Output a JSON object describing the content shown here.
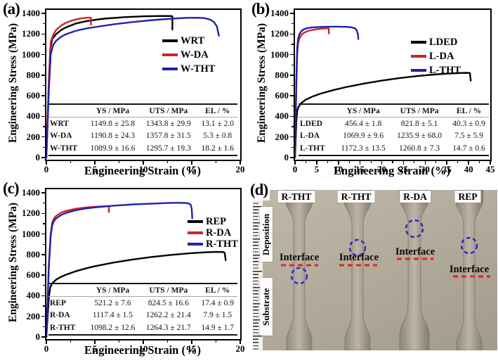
{
  "chart_data": [
    {
      "id": "a",
      "type": "line",
      "panel_label": "(a)",
      "xlabel": "Engineering Strain (%)",
      "ylabel": "Engineering Stress (MPa)",
      "xlim": [
        0,
        20
      ],
      "ylim": [
        0,
        1400
      ],
      "xticks": [
        0,
        5,
        10,
        15,
        20
      ],
      "yticks": [
        0,
        200,
        400,
        600,
        800,
        1000,
        1200,
        1400
      ],
      "legend_position": "right-middle",
      "grid": false,
      "series": [
        {
          "name": "WRT",
          "color": "#000000",
          "points": [
            [
              0,
              0
            ],
            [
              0.25,
              700
            ],
            [
              0.4,
              1050
            ],
            [
              0.6,
              1150
            ],
            [
              1,
              1198
            ],
            [
              1.5,
              1237
            ],
            [
              2,
              1263
            ],
            [
              3,
              1300
            ],
            [
              4,
              1322
            ],
            [
              5,
              1337
            ],
            [
              6,
              1349
            ],
            [
              8,
              1363
            ],
            [
              10,
              1371
            ],
            [
              12,
              1375
            ],
            [
              12.9,
              1374
            ],
            [
              13,
              1371
            ],
            [
              13,
              1243
            ]
          ]
        },
        {
          "name": "W-DA",
          "color": "#cc2424",
          "points": [
            [
              0,
              0
            ],
            [
              0.25,
              760
            ],
            [
              0.45,
              1125
            ],
            [
              0.7,
              1192
            ],
            [
              1,
              1238
            ],
            [
              1.5,
              1280
            ],
            [
              2,
              1307
            ],
            [
              2.5,
              1326
            ],
            [
              3,
              1340
            ],
            [
              3.5,
              1350
            ],
            [
              4,
              1356
            ],
            [
              4.5,
              1359
            ],
            [
              4.6,
              1357
            ],
            [
              4.6,
              1290
            ]
          ]
        },
        {
          "name": "W-THT",
          "color": "#2121b0",
          "points": [
            [
              0,
              0
            ],
            [
              0.25,
              650
            ],
            [
              0.45,
              1005
            ],
            [
              0.7,
              1092
            ],
            [
              1,
              1132
            ],
            [
              1.5,
              1172
            ],
            [
              2,
              1197
            ],
            [
              3,
              1229
            ],
            [
              4,
              1251
            ],
            [
              5,
              1267
            ],
            [
              7,
              1295
            ],
            [
              9,
              1317
            ],
            [
              11,
              1335
            ],
            [
              13,
              1349
            ],
            [
              14.5,
              1357
            ],
            [
              15.5,
              1358
            ],
            [
              16.3,
              1354
            ],
            [
              16.9,
              1340
            ],
            [
              17.3,
              1315
            ],
            [
              17.6,
              1270
            ],
            [
              17.8,
              1183
            ]
          ]
        }
      ],
      "table": {
        "headers": [
          "",
          "YS / MPa",
          "UTS / MPa",
          "EL / %"
        ],
        "rows": [
          [
            "WRT",
            "1149.8 ± 25.8",
            "1343.8 ± 29.9",
            "13.1 ± 2.0"
          ],
          [
            "W-DA",
            "1190.8 ± 24.3",
            "1357.8 ± 31.5",
            "5.3 ± 0.8"
          ],
          [
            "W-THT",
            "1089.9 ± 16.6",
            "1295.7 ± 19.3",
            "18.2 ± 1.6"
          ]
        ]
      }
    },
    {
      "id": "b",
      "type": "line",
      "panel_label": "(b)",
      "xlabel": "Engineering Strain (%)",
      "ylabel": "Engineering Stress (MPa)",
      "xlim": [
        0,
        45
      ],
      "ylim": [
        0,
        1400
      ],
      "xticks": [
        0,
        5,
        10,
        15,
        20,
        25,
        30,
        35,
        40,
        45
      ],
      "yticks": [
        0,
        200,
        400,
        600,
        800,
        1000,
        1200,
        1400
      ],
      "legend_position": "right-middle",
      "grid": false,
      "series": [
        {
          "name": "LDED",
          "color": "#000000",
          "points": [
            [
              0,
              0
            ],
            [
              0.3,
              350
            ],
            [
              0.5,
              452
            ],
            [
              0.8,
              492
            ],
            [
              1.5,
              532
            ],
            [
              2.5,
              562
            ],
            [
              4,
              592
            ],
            [
              6,
              622
            ],
            [
              9,
              657
            ],
            [
              12,
              686
            ],
            [
              16,
              719
            ],
            [
              20,
              747
            ],
            [
              24,
              771
            ],
            [
              28,
              791
            ],
            [
              32,
              806
            ],
            [
              35,
              815
            ],
            [
              38,
              821
            ],
            [
              39.5,
              823
            ],
            [
              40.3,
              821
            ],
            [
              40.5,
              747
            ]
          ]
        },
        {
          "name": "L-DA",
          "color": "#cc2424",
          "points": [
            [
              0,
              0
            ],
            [
              0.3,
              700
            ],
            [
              0.5,
              1005
            ],
            [
              0.7,
              1102
            ],
            [
              1,
              1157
            ],
            [
              1.5,
              1193
            ],
            [
              2,
              1211
            ],
            [
              3,
              1229
            ],
            [
              4,
              1239
            ],
            [
              5,
              1246
            ],
            [
              6,
              1251
            ],
            [
              7,
              1254
            ],
            [
              7.7,
              1256
            ],
            [
              7.8,
              1253
            ],
            [
              7.8,
              1205
            ]
          ]
        },
        {
          "name": "L-THT",
          "color": "#2121b0",
          "points": [
            [
              0,
              0
            ],
            [
              0.3,
              750
            ],
            [
              0.5,
              1062
            ],
            [
              0.7,
              1152
            ],
            [
              1,
              1197
            ],
            [
              1.5,
              1229
            ],
            [
              2,
              1245
            ],
            [
              3,
              1258
            ],
            [
              4,
              1264
            ],
            [
              6,
              1269
            ],
            [
              8,
              1271
            ],
            [
              10,
              1271
            ],
            [
              12,
              1269
            ],
            [
              13,
              1265
            ],
            [
              13.8,
              1255
            ],
            [
              14.2,
              1237
            ],
            [
              14.5,
              1197
            ],
            [
              14.6,
              1150
            ]
          ]
        }
      ],
      "table": {
        "headers": [
          "",
          "YS / MPa",
          "UTS / MPa",
          "EL / %"
        ],
        "rows": [
          [
            "LDED",
            "456.4 ± 1.8",
            "821.8 ± 5.1",
            "40.3 ± 0.9"
          ],
          [
            "L-DA",
            "1069.9 ± 9.6",
            "1235.9 ± 68.0",
            "7.5 ± 5.9"
          ],
          [
            "L-THT",
            "1172.3 ± 13.5",
            "1260.8 ± 7.3",
            "14.7 ± 0.6"
          ]
        ]
      }
    },
    {
      "id": "c",
      "type": "line",
      "panel_label": "(c)",
      "xlabel": "Engineering Strain (%)",
      "ylabel": "Engineering Stress (MPa)",
      "xlim": [
        0,
        20
      ],
      "ylim": [
        0,
        1400
      ],
      "xticks": [
        0,
        5,
        10,
        15,
        20
      ],
      "yticks": [
        0,
        200,
        400,
        600,
        800,
        1000,
        1200,
        1400
      ],
      "legend_position": "right-middle",
      "grid": false,
      "series": [
        {
          "name": "REP",
          "color": "#000000",
          "points": [
            [
              0,
              0
            ],
            [
              0.25,
              380
            ],
            [
              0.4,
              482
            ],
            [
              0.6,
              521
            ],
            [
              1,
              556
            ],
            [
              1.5,
              583
            ],
            [
              2,
              604
            ],
            [
              3,
              637
            ],
            [
              4,
              664
            ],
            [
              5,
              687
            ],
            [
              7,
              723
            ],
            [
              9,
              753
            ],
            [
              11,
              778
            ],
            [
              13,
              798
            ],
            [
              15,
              814
            ],
            [
              16.5,
              822
            ],
            [
              17.5,
              826
            ],
            [
              18.2,
              825
            ],
            [
              18.4,
              817
            ],
            [
              18.5,
              745
            ]
          ]
        },
        {
          "name": "R-DA",
          "color": "#cc2424",
          "points": [
            [
              0,
              0
            ],
            [
              0.25,
              700
            ],
            [
              0.45,
              1002
            ],
            [
              0.6,
              1112
            ],
            [
              0.8,
              1152
            ],
            [
              1,
              1174
            ],
            [
              1.5,
              1206
            ],
            [
              2,
              1223
            ],
            [
              3,
              1244
            ],
            [
              4,
              1256
            ],
            [
              5,
              1264
            ],
            [
              6,
              1269
            ],
            [
              6.4,
              1271
            ],
            [
              6.45,
              1268
            ],
            [
              6.45,
              1213
            ]
          ]
        },
        {
          "name": "R-THT",
          "color": "#2121b0",
          "points": [
            [
              0,
              0
            ],
            [
              0.25,
              680
            ],
            [
              0.45,
              982
            ],
            [
              0.6,
              1082
            ],
            [
              0.8,
              1127
            ],
            [
              1,
              1150
            ],
            [
              1.5,
              1183
            ],
            [
              2,
              1203
            ],
            [
              3,
              1229
            ],
            [
              4,
              1246
            ],
            [
              5,
              1258
            ],
            [
              7,
              1275
            ],
            [
              9,
              1287
            ],
            [
              11,
              1295
            ],
            [
              12.5,
              1300
            ],
            [
              13.5,
              1302
            ],
            [
              14.3,
              1301
            ],
            [
              14.7,
              1296
            ],
            [
              14.9,
              1283
            ],
            [
              15,
              1240
            ],
            [
              15.05,
              1152
            ]
          ]
        }
      ],
      "table": {
        "headers": [
          "",
          "YS / MPa",
          "UTS / MPa",
          "EL / %"
        ],
        "rows": [
          [
            "REP",
            "521.2 ± 7.6",
            "824.5 ± 16.6",
            "17.4 ± 0.9"
          ],
          [
            "R-DA",
            "1117.4 ± 1.5",
            "1262.2 ± 21.4",
            "7.9 ± 1.5"
          ],
          [
            "R-THT",
            "1098.2 ± 12.6",
            "1264.3 ± 21.7",
            "14.9 ± 1.7"
          ]
        ]
      }
    }
  ],
  "photo_panel": {
    "panel_label": "(d)",
    "side_labels": {
      "top": "Deposition",
      "bottom": "Substrate"
    },
    "specimens": [
      {
        "label": "R-THT",
        "interface_label": "Interface"
      },
      {
        "label": "R-THT",
        "interface_label": "Interface"
      },
      {
        "label": "R-DA",
        "interface_label": "Interface"
      },
      {
        "label": "REP",
        "interface_label": "Interface"
      }
    ],
    "colors": {
      "background": "#b2aa9b",
      "interface_line": "#e32222",
      "fracture_circle": "#2626c4"
    }
  }
}
